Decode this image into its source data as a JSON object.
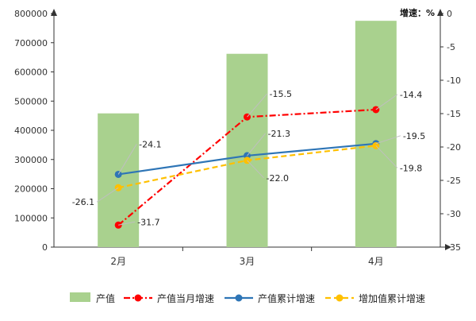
{
  "chart_data": {
    "type": "bar+line",
    "categories": [
      "2月",
      "3月",
      "4月"
    ],
    "unit_label": "增速：%",
    "y_left": {
      "min": 0,
      "max": 800000,
      "step": 100000
    },
    "y_right": {
      "min": -35,
      "max": 0,
      "step": 5
    },
    "grid": false,
    "legend_position": "bottom",
    "series": [
      {
        "name": "产值",
        "kind": "bar",
        "axis": "left",
        "color": "#a9d18e",
        "values": [
          458000,
          662000,
          775000
        ],
        "labels": [
          "",
          "",
          ""
        ]
      },
      {
        "name": "产值当月增速",
        "kind": "line",
        "style": "dashdot",
        "axis": "right",
        "color": "#ff0000",
        "values": [
          -31.7,
          -15.5,
          -14.4
        ],
        "labels": [
          "-31.7",
          "-15.5",
          "-14.4"
        ]
      },
      {
        "name": "产值累计增速",
        "kind": "line",
        "style": "solid",
        "axis": "right",
        "color": "#2e75b6",
        "values": [
          -24.1,
          -21.3,
          -19.5
        ],
        "labels": [
          "-24.1",
          "-21.3",
          "-19.5"
        ]
      },
      {
        "name": "增加值累计增速",
        "kind": "line",
        "style": "dashed",
        "axis": "right",
        "color": "#ffc000",
        "values": [
          -26.1,
          -22.0,
          -19.8
        ],
        "labels": [
          "-26.1",
          "-22.0",
          "-19.8"
        ]
      }
    ]
  }
}
